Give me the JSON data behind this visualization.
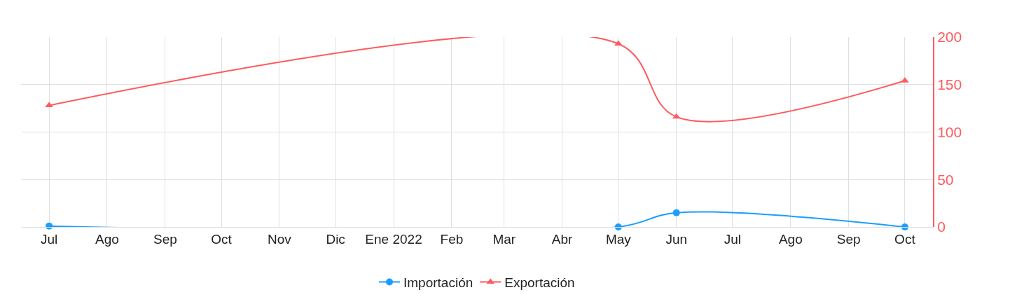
{
  "chart_data": {
    "type": "line",
    "x": [
      "2021-07-01",
      "2022-05-01",
      "2022-06-01",
      "2022-10-01"
    ],
    "series": [
      {
        "name": "Importación",
        "color": "#1a9eff",
        "marker": "circle",
        "values": [
          1,
          0,
          15,
          0
        ]
      },
      {
        "name": "Exportación",
        "color": "#ff5a5f",
        "marker": "triangle",
        "values": [
          128,
          193,
          116,
          154
        ]
      }
    ],
    "xlim": [
      "2021-06-16",
      "2022-10-16"
    ],
    "xticks": [
      {
        "value": "2021-07-01",
        "label": "Jul"
      },
      {
        "value": "2021-08-01",
        "label": "Ago"
      },
      {
        "value": "2021-09-01",
        "label": "Sep"
      },
      {
        "value": "2021-10-01",
        "label": "Oct"
      },
      {
        "value": "2021-11-01",
        "label": "Nov"
      },
      {
        "value": "2021-12-01",
        "label": "Dic"
      },
      {
        "value": "2022-01-01",
        "label": "Ene 2022"
      },
      {
        "value": "2022-02-01",
        "label": "Feb"
      },
      {
        "value": "2022-03-01",
        "label": "Mar"
      },
      {
        "value": "2022-04-01",
        "label": "Abr"
      },
      {
        "value": "2022-05-01",
        "label": "May"
      },
      {
        "value": "2022-06-01",
        "label": "Jun"
      },
      {
        "value": "2022-07-01",
        "label": "Jul"
      },
      {
        "value": "2022-08-01",
        "label": "Ago"
      },
      {
        "value": "2022-09-01",
        "label": "Sep"
      },
      {
        "value": "2022-10-01",
        "label": "Oct"
      }
    ],
    "ylim": [
      0,
      200
    ],
    "yticks": [
      0,
      50,
      100,
      150,
      200
    ],
    "grid": true,
    "legend": "bottom",
    "line_style": "solid"
  }
}
